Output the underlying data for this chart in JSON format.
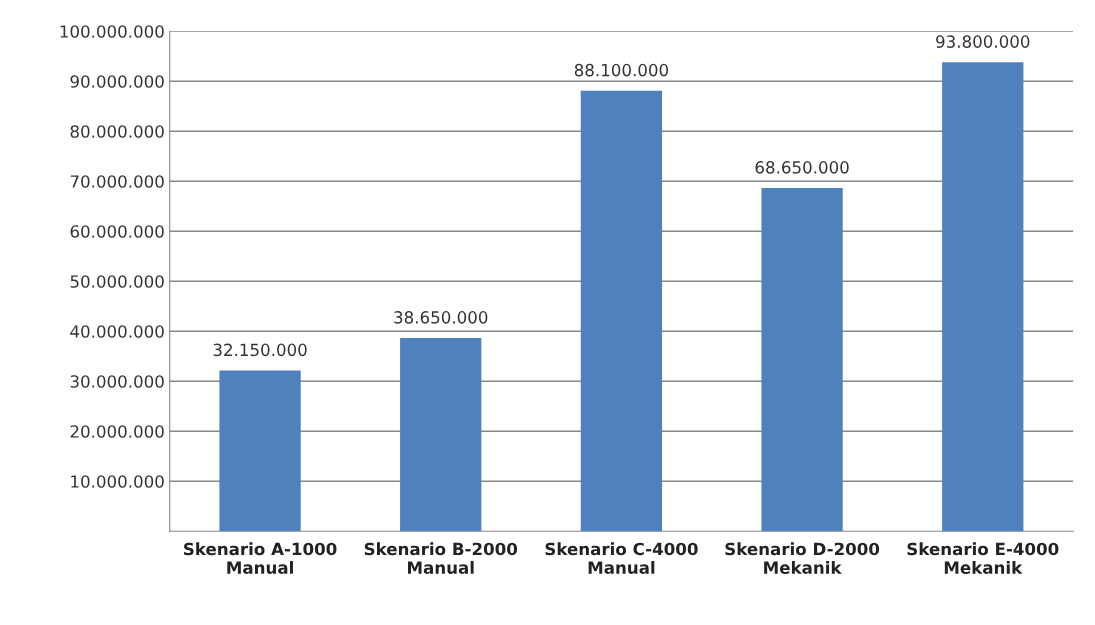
{
  "chart_data": {
    "type": "bar",
    "categories": [
      "Skenario A-1000\nManual",
      "Skenario B-2000\nManual",
      "Skenario C-4000\nManual",
      "Skenario D-2000\nMekanik",
      "Skenario E-4000\nMekanik"
    ],
    "values": [
      32150000,
      38650000,
      88100000,
      68650000,
      93800000
    ],
    "value_labels": [
      "32.150.000",
      "38.650.000",
      "88.100.000",
      "68.650.000",
      "93.800.000"
    ],
    "color": "#4f81bd",
    "ylim": [
      0,
      100000000
    ],
    "yticks": [
      {
        "value": 10000000,
        "label": "10.000.000"
      },
      {
        "value": 20000000,
        "label": "20.000.000"
      },
      {
        "value": 30000000,
        "label": "30.000.000"
      },
      {
        "value": 40000000,
        "label": "40.000.000"
      },
      {
        "value": 50000000,
        "label": "50.000.000"
      },
      {
        "value": 60000000,
        "label": "60.000.000"
      },
      {
        "value": 70000000,
        "label": "70.000.000"
      },
      {
        "value": 80000000,
        "label": "80.000.000"
      },
      {
        "value": 90000000,
        "label": "90.000.000"
      },
      {
        "value": 100000000,
        "label": "100.000.000"
      }
    ],
    "grid": "y"
  }
}
